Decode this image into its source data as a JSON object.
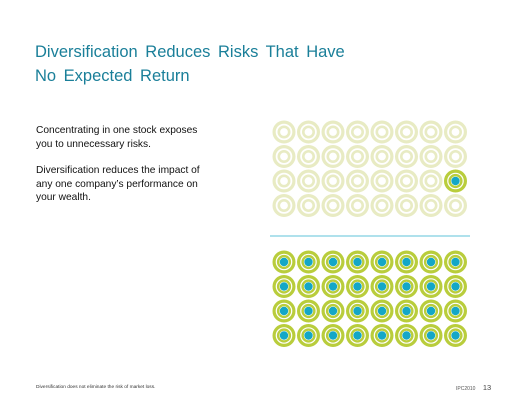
{
  "slide": {
    "title_lines": [
      "Diversification Reduces Risks That Have",
      "No Expected Return"
    ],
    "body_paragraphs": [
      [
        "Concentrating in one stock exposes",
        "you to unnecessary risks."
      ],
      [
        "Diversification reduces the impact of",
        "any one company’s performance on",
        "your wealth."
      ]
    ],
    "footnote": "Diversification does not eliminate the risk of market loss.",
    "copyright": "IPC2010",
    "page_number": "13"
  },
  "graphic": {
    "top_grid": {
      "rows": 4,
      "cols": 8,
      "highlighted_cell": {
        "row": 2,
        "col": 7
      }
    },
    "bottom_grid": {
      "rows": 4,
      "cols": 8
    },
    "colors": {
      "pale_ring": "#e8ebc3",
      "green_ring": "#b9cd3c",
      "dot": "#14a7c6",
      "divider": "#7fcfe0"
    }
  }
}
